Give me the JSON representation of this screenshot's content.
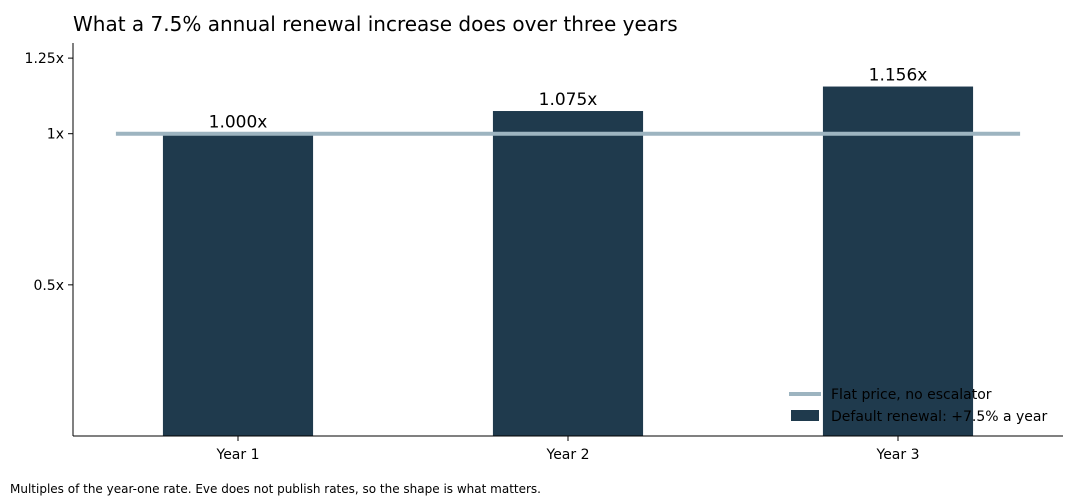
{
  "chart_data": {
    "type": "bar",
    "title": "What a 7.5% annual renewal increase does over three years",
    "xlabel": "",
    "ylabel": "",
    "categories": [
      "Year 1",
      "Year 2",
      "Year 3"
    ],
    "series": [
      {
        "name": "Default renewal: +7.5% a year",
        "values": [
          1.0,
          1.075,
          1.156
        ],
        "labels": [
          "1.000x",
          "1.075x",
          "1.156x"
        ],
        "color": "#1f3a4d"
      }
    ],
    "reference_line": {
      "name": "Flat price, no escalator",
      "value": 1.0,
      "color": "#9db4c0"
    },
    "ylim": [
      0,
      1.3
    ],
    "yticks": [
      0.5,
      1.0,
      1.25
    ],
    "ytick_labels": [
      "0.5x",
      "1x",
      "1.25x"
    ],
    "grid": false,
    "legend_position": "bottom-right"
  },
  "caption": "Multiples of the year-one rate. Eve does not publish rates, so the shape is what matters."
}
